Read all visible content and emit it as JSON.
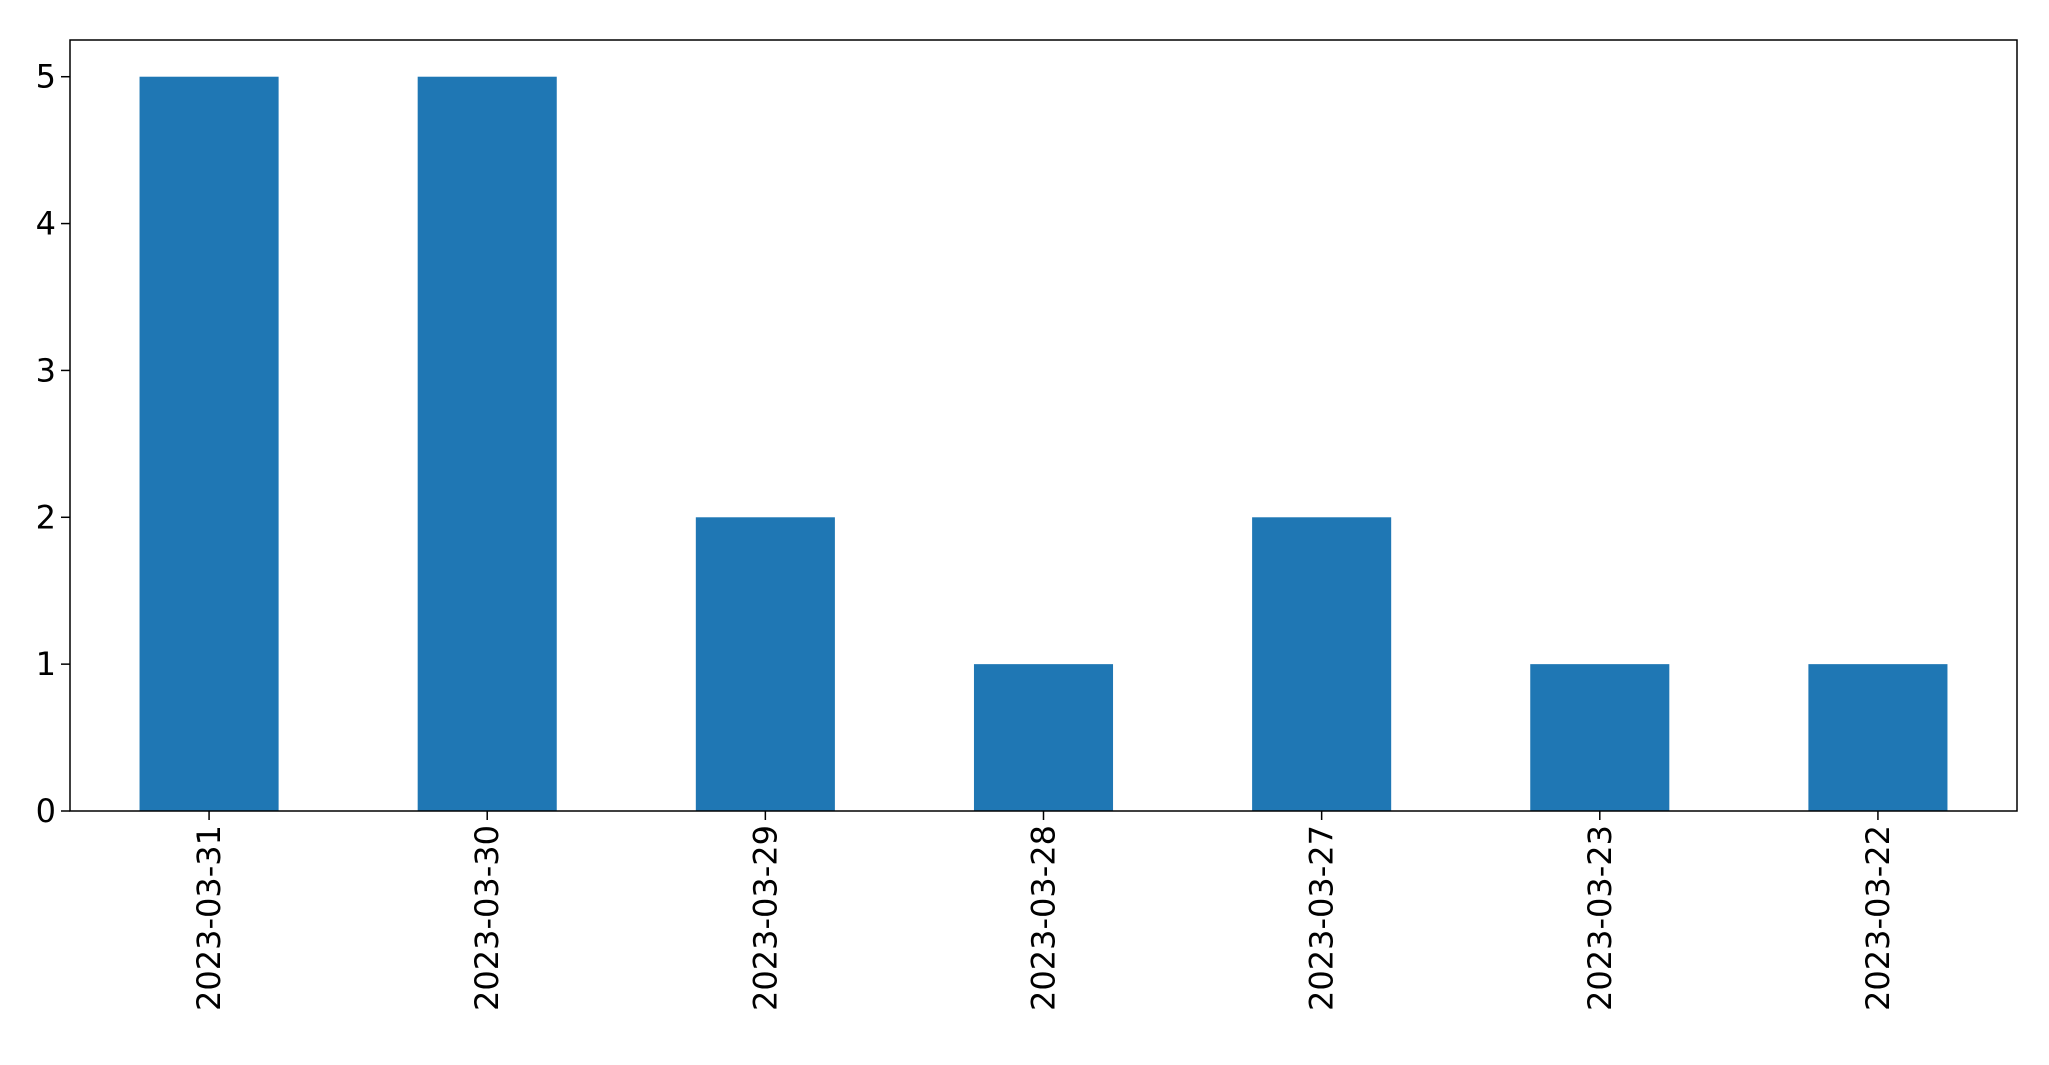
{
  "chart_data": {
    "type": "bar",
    "categories": [
      "2023-03-31",
      "2023-03-30",
      "2023-03-29",
      "2023-03-28",
      "2023-03-27",
      "2023-03-23",
      "2023-03-22"
    ],
    "values": [
      5,
      5,
      2,
      1,
      2,
      1,
      1
    ],
    "title": "",
    "xlabel": "",
    "ylabel": "",
    "ylim": [
      0,
      5.25
    ],
    "yticks": [
      0,
      1,
      2,
      3,
      4,
      5
    ],
    "grid": false,
    "bar_color": "#1f77b4",
    "axis_color": "#000000",
    "background": "#ffffff"
  }
}
